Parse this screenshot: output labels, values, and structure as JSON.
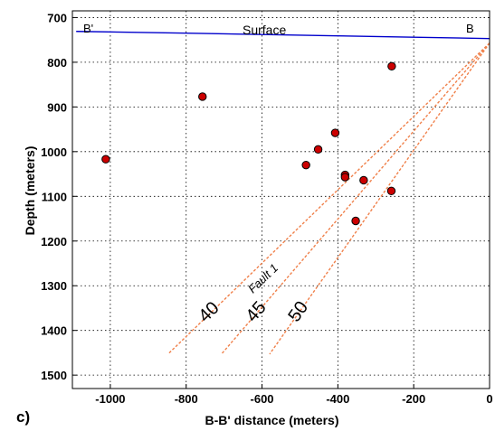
{
  "chart_data": {
    "type": "scatter",
    "panel_label": "c)",
    "xlabel": "B-B' distance (meters)",
    "ylabel": "Depth (meters)",
    "xlim": [
      -1100,
      0
    ],
    "ylim": [
      1530,
      685
    ],
    "x_ticks": [
      -1000,
      -800,
      -600,
      -400,
      -200,
      0
    ],
    "y_ticks": [
      700,
      800,
      900,
      1000,
      1100,
      1200,
      1300,
      1400,
      1500
    ],
    "grid": true,
    "colors": {
      "points": "#cc0000",
      "surface": "#0000cc",
      "fault": "#f0804a",
      "grid": "#000000"
    },
    "points": [
      {
        "x": -1012,
        "y": 1017
      },
      {
        "x": -757,
        "y": 877
      },
      {
        "x": -258,
        "y": 809
      },
      {
        "x": -407,
        "y": 958
      },
      {
        "x": -452,
        "y": 995
      },
      {
        "x": -484,
        "y": 1030
      },
      {
        "x": -381,
        "y": 1052
      },
      {
        "x": -381,
        "y": 1057
      },
      {
        "x": -332,
        "y": 1064
      },
      {
        "x": -259,
        "y": 1088
      },
      {
        "x": -353,
        "y": 1155
      }
    ],
    "surface_line": {
      "name": "Surface",
      "x": [
        -1090,
        -800,
        -600,
        -400,
        -200,
        0
      ],
      "y": [
        731,
        735,
        738,
        741,
        744,
        747
      ]
    },
    "fault_lines": [
      {
        "label": "40",
        "x": [
          0,
          -848
        ],
        "y": [
          757,
          1453
        ]
      },
      {
        "label": "45",
        "x": [
          0,
          -707
        ],
        "y": [
          757,
          1453
        ]
      },
      {
        "label": "50",
        "x": [
          0,
          -580
        ],
        "y": [
          757,
          1453
        ]
      }
    ],
    "annotations": {
      "left_end": "B'",
      "right_end": "B",
      "fault_name": "Fault 1"
    }
  }
}
